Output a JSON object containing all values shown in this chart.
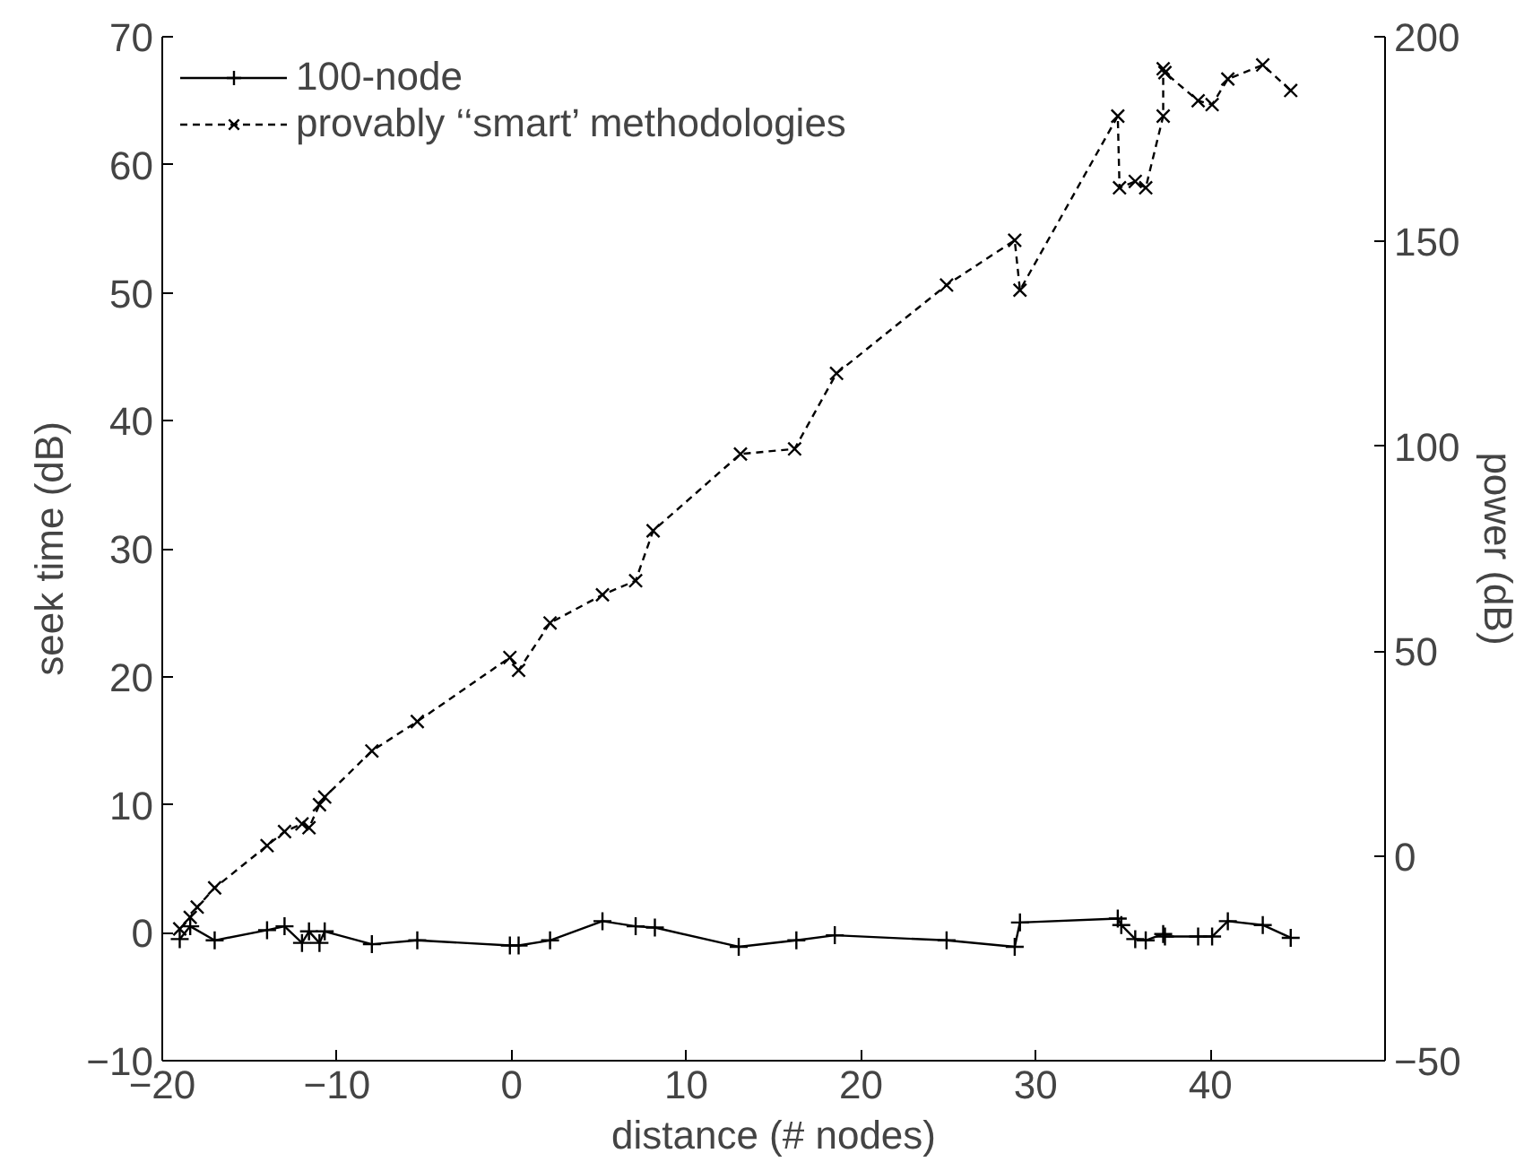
{
  "chart_data": {
    "type": "line",
    "xlabel": "distance (# nodes)",
    "ylabel": "seek time (dB)",
    "y2label": "power (dB)",
    "xlim": [
      -20,
      50
    ],
    "xticks": [
      -20,
      -10,
      0,
      10,
      20,
      30,
      40
    ],
    "ylim": [
      -10,
      70
    ],
    "yticks": [
      -10,
      0,
      10,
      20,
      30,
      40,
      50,
      60,
      70
    ],
    "y2lim": [
      -50,
      200
    ],
    "y2ticks": [
      -50,
      0,
      50,
      100,
      150,
      200
    ],
    "grid": false,
    "legend": "top left",
    "series": [
      {
        "name": "100-node",
        "color": "#000000",
        "line_style": "solid",
        "marker": "cross",
        "x": [
          -19,
          -18.4,
          -17,
          -14,
          -13,
          -12,
          -11.6,
          -11,
          -10.7,
          -8,
          -5.4,
          -0.1,
          0.4,
          2.2,
          5.2,
          7.1,
          8.2,
          13.0,
          16.3,
          18.5,
          24.9,
          28.8,
          29.1,
          34.7,
          34.9,
          35.7,
          36.3,
          37.3,
          37.4,
          39.3,
          40.1,
          41.0,
          43.0,
          44.6
        ],
        "values": [
          -0.5,
          0.5,
          -0.6,
          0.2,
          0.5,
          -0.8,
          0.1,
          -0.8,
          0.1,
          -0.9,
          -0.6,
          -1.0,
          -1.0,
          -0.6,
          0.9,
          0.5,
          0.4,
          -1.1,
          -0.6,
          -0.2,
          -0.6,
          -1.1,
          0.8,
          1.1,
          0.6,
          -0.5,
          -0.6,
          -0.1,
          -0.3,
          -0.3,
          -0.3,
          0.9,
          0.6,
          -0.4
        ]
      },
      {
        "name": "provably ‘‘smart’ methodologies",
        "color": "#000000",
        "line_style": "dashed",
        "marker": "x",
        "x": [
          -19,
          -18.4,
          -18,
          -17,
          -14,
          -13,
          -12,
          -11.6,
          -11,
          -10.7,
          -8,
          -5.4,
          -0.1,
          0.4,
          2.2,
          5.2,
          7.1,
          8.1,
          13.1,
          16.2,
          18.6,
          24.9,
          28.8,
          29.1,
          34.7,
          34.8,
          35.7,
          36.3,
          37.3,
          37.3,
          37.4,
          39.3,
          40.1,
          41.0,
          43.0,
          44.6
        ],
        "values": [
          0.3,
          1.2,
          2,
          3.5,
          6.8,
          7.9,
          8.5,
          8.2,
          10,
          10.6,
          14.2,
          16.5,
          21.5,
          20.5,
          24.2,
          26.4,
          27.5,
          31.4,
          37.4,
          37.8,
          43.7,
          50.6,
          54.1,
          50.2,
          63.8,
          58.2,
          58.7,
          58.2,
          63.8,
          67.5,
          67.2,
          65.0,
          64.7,
          66.7,
          67.8,
          65.8
        ]
      }
    ]
  }
}
